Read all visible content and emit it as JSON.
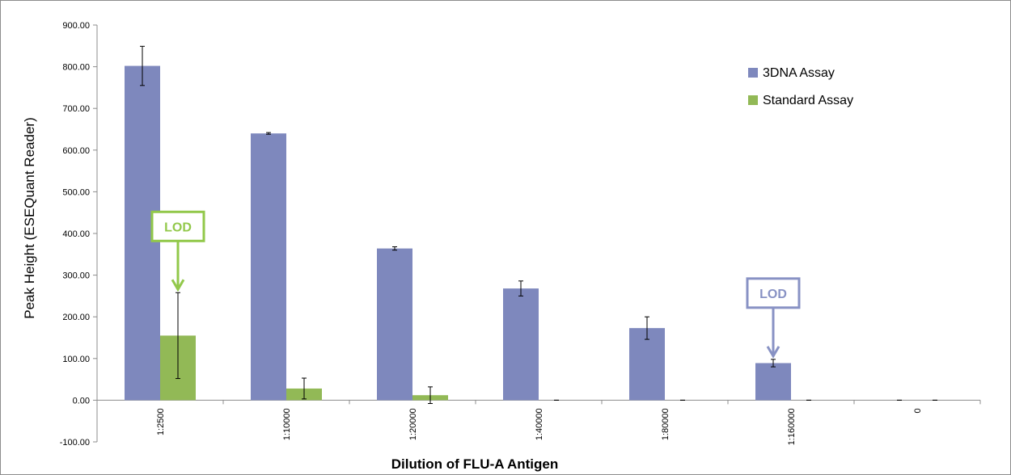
{
  "chart_data": {
    "type": "bar",
    "title": "",
    "xlabel": "Dilution of FLU-A Antigen",
    "ylabel": "Peak Height (ESEQuant Reader)",
    "ylim": [
      -100,
      900
    ],
    "yticks": [
      "900.00",
      "800.00",
      "700.00",
      "600.00",
      "500.00",
      "400.00",
      "300.00",
      "200.00",
      "100.00",
      "0.00",
      "-100.00"
    ],
    "categories": [
      "1:2500",
      "1:10000",
      "1:20000",
      "1:40000",
      "1:80000",
      "1:160000",
      "0"
    ],
    "series": [
      {
        "name": "3DNA Assay",
        "color": "#7e88bd",
        "values": [
          802,
          640,
          364,
          268,
          173,
          89,
          0
        ],
        "errors": [
          47,
          2,
          4,
          18,
          27,
          9,
          0
        ]
      },
      {
        "name": "Standard Assay",
        "color": "#92b956",
        "values": [
          155,
          28,
          12,
          0,
          0,
          0,
          0
        ],
        "errors": [
          103,
          25,
          20,
          0,
          0,
          0,
          0
        ]
      }
    ],
    "legend_position": "top-right",
    "grid": false,
    "annotations": [
      {
        "text": "LOD",
        "series": "Standard Assay",
        "category": "1:2500",
        "color": "#92c84a"
      },
      {
        "text": "LOD",
        "series": "3DNA Assay",
        "category": "1:160000",
        "color": "#8892c4"
      }
    ]
  }
}
